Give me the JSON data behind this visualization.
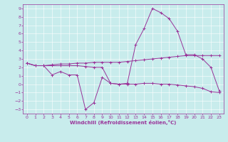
{
  "xlabel": "Windchill (Refroidissement éolien,°C)",
  "background_color": "#c8ecec",
  "line_color": "#993399",
  "xlim": [
    -0.5,
    23.5
  ],
  "ylim": [
    -3.5,
    9.5
  ],
  "xticks": [
    0,
    1,
    2,
    3,
    4,
    5,
    6,
    7,
    8,
    9,
    10,
    11,
    12,
    13,
    14,
    15,
    16,
    17,
    18,
    19,
    20,
    21,
    22,
    23
  ],
  "yticks": [
    -3,
    -2,
    -1,
    0,
    1,
    2,
    3,
    4,
    5,
    6,
    7,
    8,
    9
  ],
  "line1_x": [
    0,
    1,
    2,
    3,
    4,
    5,
    6,
    7,
    8,
    9,
    10,
    11,
    12,
    13,
    14,
    15,
    16,
    17,
    18,
    19,
    20,
    21,
    22,
    23
  ],
  "line1_y": [
    2.5,
    2.2,
    2.2,
    1.1,
    1.5,
    1.1,
    1.1,
    -3.0,
    -2.2,
    0.8,
    0.1,
    0.0,
    0.1,
    4.7,
    6.6,
    9.0,
    8.5,
    7.8,
    6.3,
    3.5,
    3.5,
    3.0,
    2.0,
    -0.8
  ],
  "line2_x": [
    0,
    1,
    2,
    3,
    4,
    5,
    6,
    7,
    8,
    9,
    10,
    11,
    12,
    13,
    14,
    15,
    16,
    17,
    18,
    19,
    20,
    21,
    22,
    23
  ],
  "line2_y": [
    2.5,
    2.2,
    2.2,
    2.3,
    2.4,
    2.4,
    2.5,
    2.5,
    2.6,
    2.6,
    2.6,
    2.6,
    2.7,
    2.8,
    2.9,
    3.0,
    3.1,
    3.2,
    3.3,
    3.4,
    3.4,
    3.4,
    3.4,
    3.4
  ],
  "line3_x": [
    0,
    1,
    2,
    3,
    4,
    5,
    6,
    7,
    8,
    9,
    10,
    11,
    12,
    13,
    14,
    15,
    16,
    17,
    18,
    19,
    20,
    21,
    22,
    23
  ],
  "line3_y": [
    2.5,
    2.2,
    2.2,
    2.2,
    2.2,
    2.2,
    2.2,
    2.1,
    2.0,
    2.0,
    0.1,
    0.0,
    0.0,
    0.0,
    0.1,
    0.1,
    0.0,
    0.0,
    -0.1,
    -0.2,
    -0.3,
    -0.5,
    -0.9,
    -1.0
  ],
  "tick_fontsize": 4.5,
  "xlabel_fontsize": 5.0,
  "marker_size": 2.5,
  "linewidth": 0.7
}
